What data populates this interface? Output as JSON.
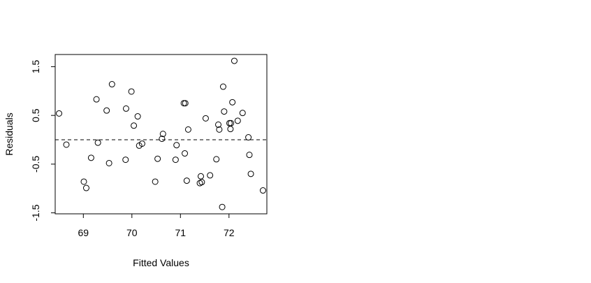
{
  "chart_data": {
    "type": "scatter",
    "title": "",
    "xlabel": "Fitted Values",
    "ylabel": "Residuals",
    "xlim": [
      68.42,
      72.78
    ],
    "ylim": [
      -1.52,
      1.75
    ],
    "x_ticks": [
      69,
      70,
      71,
      72
    ],
    "x_tick_labels": [
      "69",
      "70",
      "71",
      "72"
    ],
    "y_ticks": [
      -1.5,
      -0.5,
      0.5,
      1.5
    ],
    "y_tick_labels": [
      "-1.5",
      "-0.5",
      "0.5",
      "1.5"
    ],
    "reference_line": {
      "y": 0,
      "style": "dashed"
    },
    "marker": "open-circle",
    "grid": false,
    "legend": "none",
    "points": [
      {
        "x": 68.5,
        "y": 0.54
      },
      {
        "x": 68.65,
        "y": -0.1
      },
      {
        "x": 69.01,
        "y": -0.86
      },
      {
        "x": 69.06,
        "y": -0.99
      },
      {
        "x": 69.16,
        "y": -0.37
      },
      {
        "x": 69.27,
        "y": 0.83
      },
      {
        "x": 69.3,
        "y": -0.06
      },
      {
        "x": 69.48,
        "y": 0.6
      },
      {
        "x": 69.53,
        "y": -0.48
      },
      {
        "x": 69.59,
        "y": 1.14
      },
      {
        "x": 69.87,
        "y": -0.41
      },
      {
        "x": 69.88,
        "y": 0.64
      },
      {
        "x": 69.99,
        "y": 0.99
      },
      {
        "x": 70.04,
        "y": 0.29
      },
      {
        "x": 70.12,
        "y": 0.48
      },
      {
        "x": 70.15,
        "y": -0.12
      },
      {
        "x": 70.21,
        "y": -0.08
      },
      {
        "x": 70.48,
        "y": -0.86
      },
      {
        "x": 70.53,
        "y": -0.39
      },
      {
        "x": 70.62,
        "y": 0.02
      },
      {
        "x": 70.64,
        "y": 0.12
      },
      {
        "x": 70.9,
        "y": -0.41
      },
      {
        "x": 70.92,
        "y": -0.11
      },
      {
        "x": 71.07,
        "y": 0.75
      },
      {
        "x": 71.1,
        "y": 0.75
      },
      {
        "x": 71.09,
        "y": -0.28
      },
      {
        "x": 71.13,
        "y": -0.84
      },
      {
        "x": 71.16,
        "y": 0.21
      },
      {
        "x": 71.4,
        "y": -0.89
      },
      {
        "x": 71.42,
        "y": -0.75
      },
      {
        "x": 71.44,
        "y": -0.87
      },
      {
        "x": 71.52,
        "y": 0.44
      },
      {
        "x": 71.61,
        "y": -0.73
      },
      {
        "x": 71.74,
        "y": -0.4
      },
      {
        "x": 71.78,
        "y": 0.31
      },
      {
        "x": 71.8,
        "y": 0.21
      },
      {
        "x": 71.86,
        "y": -1.38
      },
      {
        "x": 71.88,
        "y": 1.09
      },
      {
        "x": 71.9,
        "y": 0.58
      },
      {
        "x": 72.01,
        "y": 0.34
      },
      {
        "x": 72.03,
        "y": 0.22
      },
      {
        "x": 72.04,
        "y": 0.34
      },
      {
        "x": 72.07,
        "y": 0.77
      },
      {
        "x": 72.11,
        "y": 1.62
      },
      {
        "x": 72.18,
        "y": 0.39
      },
      {
        "x": 72.28,
        "y": 0.55
      },
      {
        "x": 72.4,
        "y": 0.05
      },
      {
        "x": 72.42,
        "y": -0.31
      },
      {
        "x": 72.45,
        "y": -0.7
      },
      {
        "x": 72.7,
        "y": -1.04
      }
    ]
  }
}
